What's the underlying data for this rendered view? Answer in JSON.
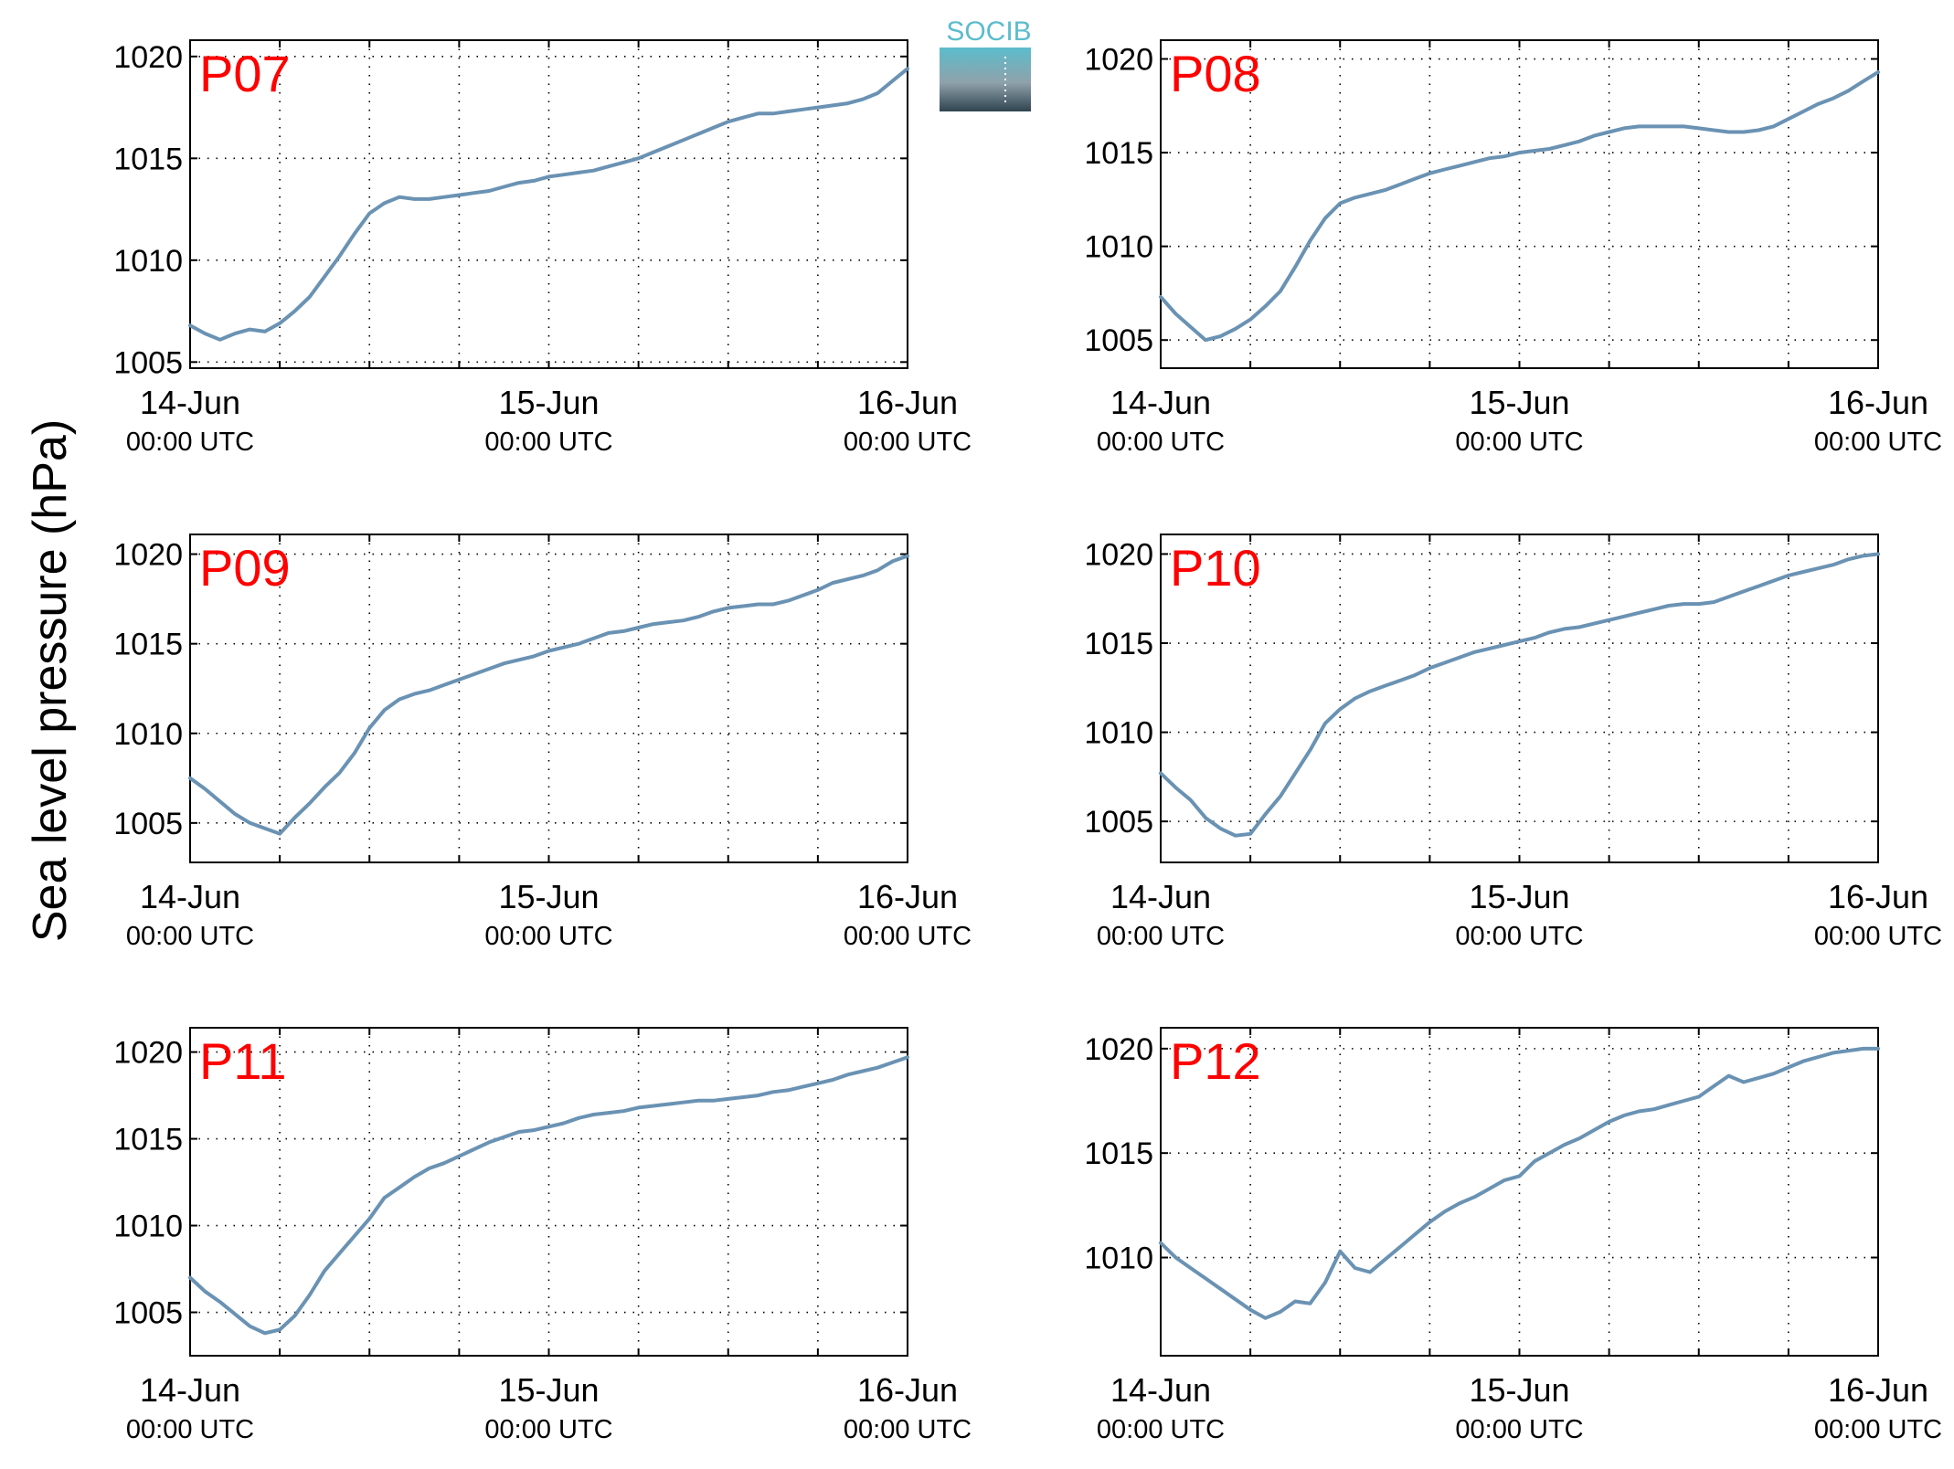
{
  "figure": {
    "ylabel": "Sea level pressure (hPa)",
    "logo": {
      "text": "SOCIB",
      "colors": [
        "#5cbccc",
        "#8fa2ab",
        "#2f4450"
      ]
    },
    "line_color": "#6a92b3",
    "station_label_color": "#ff0000"
  },
  "chart_data": [
    {
      "type": "line",
      "name": "P07",
      "xlim": [
        "14-Jun 00:00 UTC",
        "16-Jun 00:00 UTC"
      ],
      "ylim": [
        1004.7,
        1020.8
      ],
      "yticks": [
        1005,
        1010,
        1015,
        1020
      ],
      "xticks": [
        {
          "date": "14-Jun",
          "time": "00:00 UTC"
        },
        {
          "date": "15-Jun",
          "time": "00:00 UTC"
        },
        {
          "date": "16-Jun",
          "time": "00:00 UTC"
        }
      ],
      "grid": true,
      "x_hours": [
        0,
        1,
        2,
        3,
        4,
        5,
        6,
        7,
        8,
        9,
        10,
        11,
        12,
        13,
        14,
        15,
        16,
        17,
        18,
        19,
        20,
        21,
        22,
        23,
        24,
        25,
        26,
        27,
        28,
        29,
        30,
        31,
        32,
        33,
        34,
        35,
        36,
        37,
        38,
        39,
        40,
        41,
        42,
        43,
        44,
        45,
        46,
        47,
        48
      ],
      "values": [
        1006.8,
        1006.4,
        1006.1,
        1006.4,
        1006.6,
        1006.5,
        1006.9,
        1007.5,
        1008.2,
        1009.2,
        1010.2,
        1011.3,
        1012.3,
        1012.8,
        1013.1,
        1013.0,
        1013.0,
        1013.1,
        1013.2,
        1013.3,
        1013.4,
        1013.6,
        1013.8,
        1013.9,
        1014.1,
        1014.2,
        1014.3,
        1014.4,
        1014.6,
        1014.8,
        1015.0,
        1015.3,
        1015.6,
        1015.9,
        1016.2,
        1016.5,
        1016.8,
        1017.0,
        1017.2,
        1017.2,
        1017.3,
        1017.4,
        1017.5,
        1017.6,
        1017.7,
        1017.9,
        1018.2,
        1018.8,
        1019.4
      ]
    },
    {
      "type": "line",
      "name": "P08",
      "xlim": [
        "14-Jun 00:00 UTC",
        "16-Jun 00:00 UTC"
      ],
      "ylim": [
        1003.5,
        1021.0
      ],
      "yticks": [
        1005,
        1010,
        1015,
        1020
      ],
      "xticks": [
        {
          "date": "14-Jun",
          "time": "00:00 UTC"
        },
        {
          "date": "15-Jun",
          "time": "00:00 UTC"
        },
        {
          "date": "16-Jun",
          "time": "00:00 UTC"
        }
      ],
      "grid": true,
      "x_hours": [
        0,
        1,
        2,
        3,
        4,
        5,
        6,
        7,
        8,
        9,
        10,
        11,
        12,
        13,
        14,
        15,
        16,
        17,
        18,
        19,
        20,
        21,
        22,
        23,
        24,
        25,
        26,
        27,
        28,
        29,
        30,
        31,
        32,
        33,
        34,
        35,
        36,
        37,
        38,
        39,
        40,
        41,
        42,
        43,
        44,
        45,
        46,
        47,
        48
      ],
      "values": [
        1007.3,
        1006.4,
        1005.7,
        1005.0,
        1005.2,
        1005.6,
        1006.1,
        1006.8,
        1007.6,
        1008.9,
        1010.3,
        1011.5,
        1012.3,
        1012.6,
        1012.8,
        1013.0,
        1013.3,
        1013.6,
        1013.9,
        1014.1,
        1014.3,
        1014.5,
        1014.7,
        1014.8,
        1015.0,
        1015.1,
        1015.2,
        1015.4,
        1015.6,
        1015.9,
        1016.1,
        1016.3,
        1016.4,
        1016.4,
        1016.4,
        1016.4,
        1016.3,
        1016.2,
        1016.1,
        1016.1,
        1016.2,
        1016.4,
        1016.8,
        1017.2,
        1017.6,
        1017.9,
        1018.3,
        1018.8,
        1019.3
      ]
    },
    {
      "type": "line",
      "name": "P09",
      "xlim": [
        "14-Jun 00:00 UTC",
        "16-Jun 00:00 UTC"
      ],
      "ylim": [
        1002.8,
        1021.1
      ],
      "yticks": [
        1005,
        1010,
        1015,
        1020
      ],
      "xticks": [
        {
          "date": "14-Jun",
          "time": "00:00 UTC"
        },
        {
          "date": "15-Jun",
          "time": "00:00 UTC"
        },
        {
          "date": "16-Jun",
          "time": "00:00 UTC"
        }
      ],
      "grid": true,
      "x_hours": [
        0,
        1,
        2,
        3,
        4,
        5,
        6,
        7,
        8,
        9,
        10,
        11,
        12,
        13,
        14,
        15,
        16,
        17,
        18,
        19,
        20,
        21,
        22,
        23,
        24,
        25,
        26,
        27,
        28,
        29,
        30,
        31,
        32,
        33,
        34,
        35,
        36,
        37,
        38,
        39,
        40,
        41,
        42,
        43,
        44,
        45,
        46,
        47,
        48
      ],
      "values": [
        1007.5,
        1006.9,
        1006.2,
        1005.5,
        1005.0,
        1004.7,
        1004.4,
        1005.3,
        1006.1,
        1007.0,
        1007.8,
        1008.9,
        1010.3,
        1011.3,
        1011.9,
        1012.2,
        1012.4,
        1012.7,
        1013.0,
        1013.3,
        1013.6,
        1013.9,
        1014.1,
        1014.3,
        1014.6,
        1014.8,
        1015.0,
        1015.3,
        1015.6,
        1015.7,
        1015.9,
        1016.1,
        1016.2,
        1016.3,
        1016.5,
        1016.8,
        1017.0,
        1017.1,
        1017.2,
        1017.2,
        1017.4,
        1017.7,
        1018.0,
        1018.4,
        1018.6,
        1018.8,
        1019.1,
        1019.6,
        1019.9
      ]
    },
    {
      "type": "line",
      "name": "P10",
      "xlim": [
        "14-Jun 00:00 UTC",
        "16-Jun 00:00 UTC"
      ],
      "ylim": [
        1002.7,
        1021.1
      ],
      "yticks": [
        1005,
        1010,
        1015,
        1020
      ],
      "xticks": [
        {
          "date": "14-Jun",
          "time": "00:00 UTC"
        },
        {
          "date": "15-Jun",
          "time": "00:00 UTC"
        },
        {
          "date": "16-Jun",
          "time": "00:00 UTC"
        }
      ],
      "grid": true,
      "x_hours": [
        0,
        1,
        2,
        3,
        4,
        5,
        6,
        7,
        8,
        9,
        10,
        11,
        12,
        13,
        14,
        15,
        16,
        17,
        18,
        19,
        20,
        21,
        22,
        23,
        24,
        25,
        26,
        27,
        28,
        29,
        30,
        31,
        32,
        33,
        34,
        35,
        36,
        37,
        38,
        39,
        40,
        41,
        42,
        43,
        44,
        45,
        46,
        47,
        48
      ],
      "values": [
        1007.7,
        1006.9,
        1006.2,
        1005.2,
        1004.6,
        1004.2,
        1004.3,
        1005.4,
        1006.4,
        1007.7,
        1009.0,
        1010.5,
        1011.3,
        1011.9,
        1012.3,
        1012.6,
        1012.9,
        1013.2,
        1013.6,
        1013.9,
        1014.2,
        1014.5,
        1014.7,
        1014.9,
        1015.1,
        1015.3,
        1015.6,
        1015.8,
        1015.9,
        1016.1,
        1016.3,
        1016.5,
        1016.7,
        1016.9,
        1017.1,
        1017.2,
        1017.2,
        1017.3,
        1017.6,
        1017.9,
        1018.2,
        1018.5,
        1018.8,
        1019.0,
        1019.2,
        1019.4,
        1019.7,
        1019.9,
        1020.0
      ]
    },
    {
      "type": "line",
      "name": "P11",
      "xlim": [
        "14-Jun 00:00 UTC",
        "16-Jun 00:00 UTC"
      ],
      "ylim": [
        1002.5,
        1021.4
      ],
      "yticks": [
        1005,
        1010,
        1015,
        1020
      ],
      "xticks": [
        {
          "date": "14-Jun",
          "time": "00:00 UTC"
        },
        {
          "date": "15-Jun",
          "time": "00:00 UTC"
        },
        {
          "date": "16-Jun",
          "time": "00:00 UTC"
        }
      ],
      "grid": true,
      "x_hours": [
        0,
        1,
        2,
        3,
        4,
        5,
        6,
        7,
        8,
        9,
        10,
        11,
        12,
        13,
        14,
        15,
        16,
        17,
        18,
        19,
        20,
        21,
        22,
        23,
        24,
        25,
        26,
        27,
        28,
        29,
        30,
        31,
        32,
        33,
        34,
        35,
        36,
        37,
        38,
        39,
        40,
        41,
        42,
        43,
        44,
        45,
        46,
        47,
        48
      ],
      "values": [
        1007.0,
        1006.2,
        1005.6,
        1004.9,
        1004.2,
        1003.8,
        1004.0,
        1004.8,
        1006.0,
        1007.4,
        1008.4,
        1009.4,
        1010.4,
        1011.6,
        1012.2,
        1012.8,
        1013.3,
        1013.6,
        1014.0,
        1014.4,
        1014.8,
        1015.1,
        1015.4,
        1015.5,
        1015.7,
        1015.9,
        1016.2,
        1016.4,
        1016.5,
        1016.6,
        1016.8,
        1016.9,
        1017.0,
        1017.1,
        1017.2,
        1017.2,
        1017.3,
        1017.4,
        1017.5,
        1017.7,
        1017.8,
        1018.0,
        1018.2,
        1018.4,
        1018.7,
        1018.9,
        1019.1,
        1019.4,
        1019.7
      ]
    },
    {
      "type": "line",
      "name": "P12",
      "xlim": [
        "14-Jun 00:00 UTC",
        "16-Jun 00:00 UTC"
      ],
      "ylim": [
        1005.3,
        1021.0
      ],
      "yticks": [
        1010,
        1015,
        1020
      ],
      "xticks": [
        {
          "date": "14-Jun",
          "time": "00:00 UTC"
        },
        {
          "date": "15-Jun",
          "time": "00:00 UTC"
        },
        {
          "date": "16-Jun",
          "time": "00:00 UTC"
        }
      ],
      "grid": true,
      "x_hours": [
        0,
        1,
        2,
        3,
        4,
        5,
        6,
        7,
        8,
        9,
        10,
        11,
        12,
        13,
        14,
        15,
        16,
        17,
        18,
        19,
        20,
        21,
        22,
        23,
        24,
        25,
        26,
        27,
        28,
        29,
        30,
        31,
        32,
        33,
        34,
        35,
        36,
        37,
        38,
        39,
        40,
        41,
        42,
        43,
        44,
        45,
        46,
        47,
        48
      ],
      "values": [
        1010.7,
        1010.0,
        1009.5,
        1009.0,
        1008.5,
        1008.0,
        1007.5,
        1007.1,
        1007.4,
        1007.9,
        1007.8,
        1008.8,
        1010.3,
        1009.5,
        1009.3,
        1009.9,
        1010.5,
        1011.1,
        1011.7,
        1012.2,
        1012.6,
        1012.9,
        1013.3,
        1013.7,
        1013.9,
        1014.6,
        1015.0,
        1015.4,
        1015.7,
        1016.1,
        1016.5,
        1016.8,
        1017.0,
        1017.1,
        1017.3,
        1017.5,
        1017.7,
        1018.2,
        1018.7,
        1018.4,
        1018.6,
        1018.8,
        1019.1,
        1019.4,
        1019.6,
        1019.8,
        1019.9,
        1020.0,
        1020.0
      ]
    }
  ]
}
